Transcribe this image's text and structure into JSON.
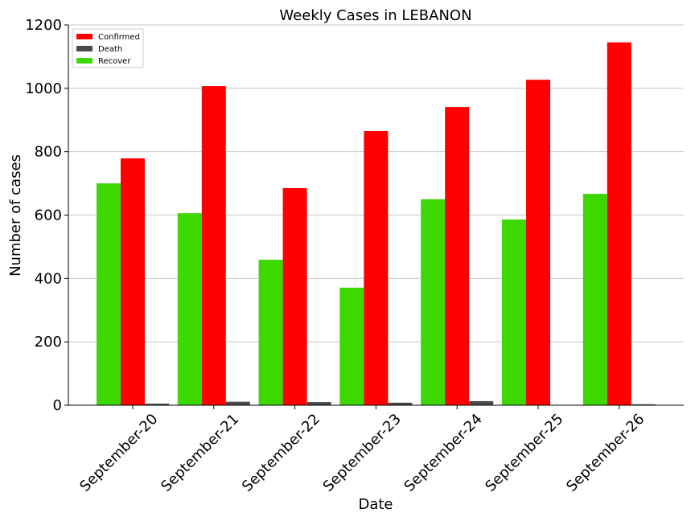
{
  "chart_data": {
    "type": "bar",
    "title": "Weekly Cases in LEBANON",
    "xlabel": "Date",
    "ylabel": "Number of cases",
    "categories": [
      "September-20",
      "September-21",
      "September-22",
      "September-23",
      "September-24",
      "September-25",
      "September-26"
    ],
    "series": [
      {
        "name": "Recover",
        "color": "#3dd800",
        "values": [
          700,
          606,
          459,
          371,
          650,
          586,
          667
        ]
      },
      {
        "name": "Confirmed",
        "color": "#ff0000",
        "values": [
          779,
          1007,
          685,
          865,
          941,
          1027,
          1145
        ]
      },
      {
        "name": "Death",
        "color": "#4a4a4a",
        "values": [
          5,
          11,
          10,
          8,
          13,
          0,
          3
        ]
      }
    ],
    "legend_order": [
      "Confirmed",
      "Death",
      "Recover"
    ],
    "ylim": [
      0,
      1200
    ],
    "yticks": [
      0,
      200,
      400,
      600,
      800,
      1000,
      1200
    ],
    "grid": "horizontal",
    "legend_position": "top-left"
  }
}
